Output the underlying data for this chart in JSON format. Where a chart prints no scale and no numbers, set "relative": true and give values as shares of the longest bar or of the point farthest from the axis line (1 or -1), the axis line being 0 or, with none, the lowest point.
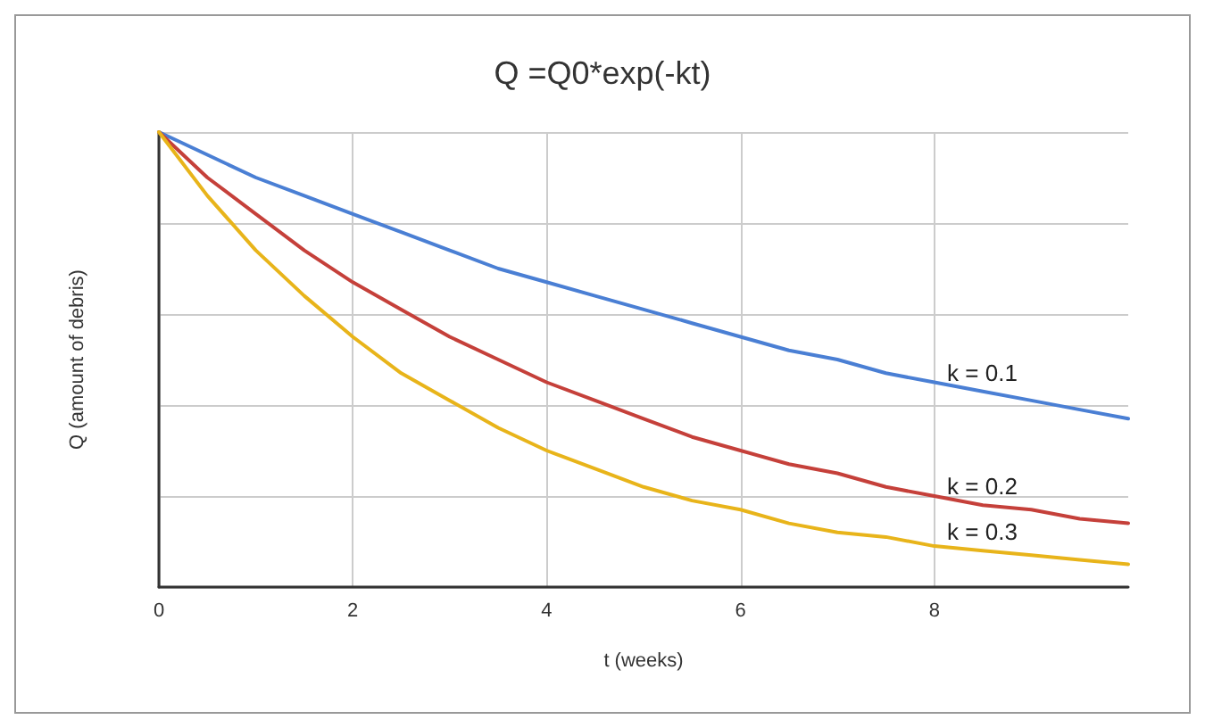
{
  "chart_data": {
    "type": "line",
    "title": "Q =Q0*exp(-kt)",
    "xlabel": "t (weeks)",
    "ylabel": "Q (amount of debris)",
    "relative": true,
    "x": [
      0,
      0.5,
      1,
      1.5,
      2,
      2.5,
      3,
      3.5,
      4,
      4.5,
      5,
      5.5,
      6,
      6.5,
      7,
      7.5,
      8,
      8.5,
      9,
      9.5,
      10
    ],
    "xlim": [
      0,
      10
    ],
    "xticks": [
      0,
      2,
      4,
      6,
      8
    ],
    "grid": true,
    "marker": "none",
    "line_style": "solid",
    "legend": false,
    "series": [
      {
        "name": "k = 0.1",
        "color": "#4a7fd4",
        "values": [
          1,
          0.95,
          0.9,
          0.86,
          0.82,
          0.78,
          0.74,
          0.7,
          0.67,
          0.64,
          0.61,
          0.58,
          0.55,
          0.52,
          0.5,
          0.47,
          0.45,
          0.43,
          0.41,
          0.39,
          0.37
        ]
      },
      {
        "name": "k = 0.2",
        "color": "#c5403a",
        "values": [
          1,
          0.9,
          0.82,
          0.74,
          0.67,
          0.61,
          0.55,
          0.5,
          0.45,
          0.41,
          0.37,
          0.33,
          0.3,
          0.27,
          0.25,
          0.22,
          0.2,
          0.18,
          0.17,
          0.15,
          0.14
        ]
      },
      {
        "name": "k = 0.3",
        "color": "#e8b41a",
        "values": [
          1,
          0.86,
          0.74,
          0.64,
          0.55,
          0.47,
          0.41,
          0.35,
          0.3,
          0.26,
          0.22,
          0.19,
          0.17,
          0.14,
          0.12,
          0.11,
          0.09,
          0.08,
          0.07,
          0.06,
          0.05
        ]
      }
    ]
  }
}
